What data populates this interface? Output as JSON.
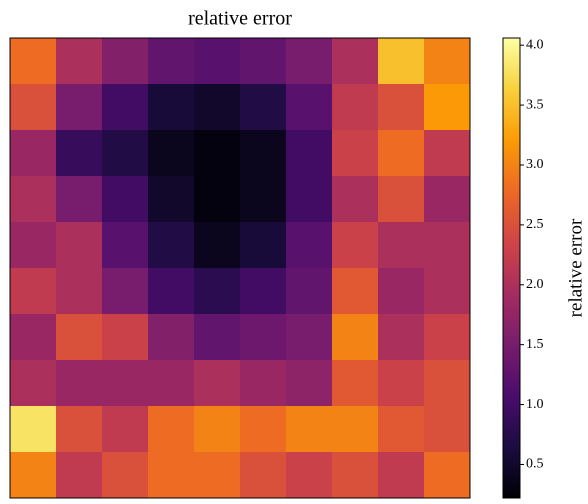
{
  "chart_data": {
    "type": "heatmap",
    "title": "relative error",
    "colorbar_label": "relative error",
    "colormap": "inferno",
    "clim": [
      0.22,
      4.06
    ],
    "cticks": [
      0.5,
      {
        "value": 1.0,
        "label": "1.0"
      },
      1.5,
      {
        "value": 2.0,
        "label": "2.0"
      },
      2.5,
      {
        "value": 3.0,
        "label": "3.0"
      },
      3.5,
      {
        "value": 4.0,
        "label": "4.0"
      }
    ],
    "z": [
      [
        2.8,
        2.0,
        1.6,
        1.3,
        1.2,
        1.3,
        1.5,
        2.0,
        3.5,
        3.0
      ],
      [
        2.5,
        1.5,
        1.0,
        0.6,
        0.5,
        0.7,
        1.2,
        2.2,
        2.5,
        3.2
      ],
      [
        1.8,
        0.9,
        0.7,
        0.4,
        0.3,
        0.4,
        1.0,
        2.3,
        2.8,
        2.2
      ],
      [
        2.0,
        1.5,
        1.0,
        0.5,
        0.3,
        0.4,
        1.0,
        2.0,
        2.5,
        1.8
      ],
      [
        1.8,
        2.0,
        1.2,
        0.7,
        0.4,
        0.6,
        1.2,
        2.3,
        2.0,
        2.0
      ],
      [
        2.2,
        2.0,
        1.5,
        1.0,
        0.8,
        1.0,
        1.3,
        2.6,
        1.8,
        2.0
      ],
      [
        1.8,
        2.5,
        2.3,
        1.6,
        1.3,
        1.4,
        1.5,
        3.0,
        2.0,
        2.3
      ],
      [
        2.0,
        1.8,
        1.8,
        1.8,
        2.0,
        1.8,
        1.7,
        2.6,
        2.3,
        2.5
      ],
      [
        3.8,
        2.5,
        2.2,
        2.8,
        3.0,
        2.8,
        3.0,
        3.0,
        2.6,
        2.5
      ],
      [
        3.0,
        2.2,
        2.5,
        2.8,
        2.8,
        2.5,
        2.3,
        2.5,
        2.2,
        2.8
      ]
    ]
  }
}
